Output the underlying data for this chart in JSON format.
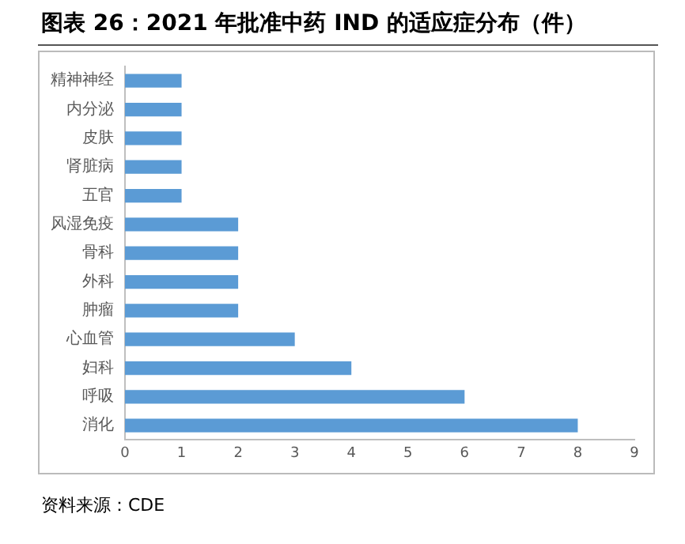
{
  "chart_data": {
    "type": "bar",
    "orientation": "horizontal",
    "title": "图表 26：2021 年批准中药 IND 的适应症分布（件）",
    "categories": [
      "精神神经",
      "内分泌",
      "皮肤",
      "肾脏病",
      "五官",
      "风湿免疫",
      "骨科",
      "外科",
      "肿瘤",
      "心血管",
      "妇科",
      "呼吸",
      "消化"
    ],
    "values": [
      1,
      1,
      1,
      1,
      1,
      2,
      2,
      2,
      2,
      3,
      4,
      6,
      8
    ],
    "color": "#5b9bd5",
    "xlim": [
      0,
      9
    ],
    "xticks": [
      0,
      1,
      2,
      3,
      4,
      5,
      6,
      7,
      8,
      9
    ],
    "grid": false,
    "legend": false,
    "annotations": [
      "资料来源：CDE"
    ]
  }
}
